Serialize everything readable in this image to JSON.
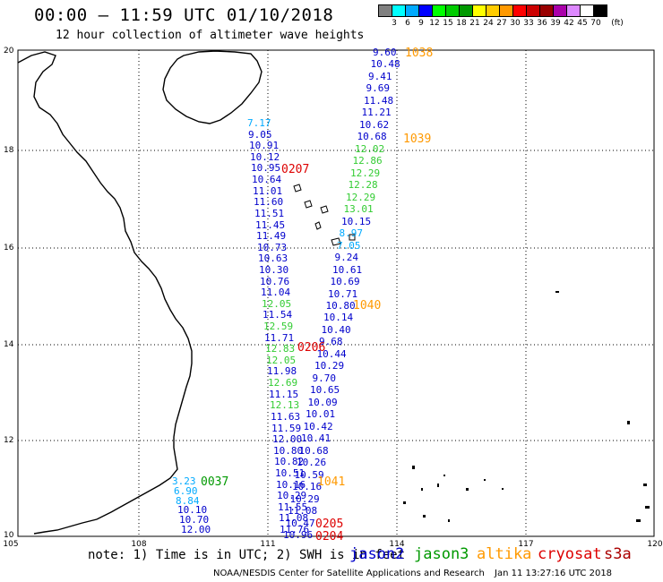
{
  "header": {
    "title": "00:00 – 11:59 UTC 01/10/2018",
    "subtitle": "12 hour collection of altimeter wave heights"
  },
  "legend": {
    "unit": "(ft)",
    "bins": [
      {
        "label": "3",
        "color": "#808080"
      },
      {
        "label": "6",
        "color": "#00ffff"
      },
      {
        "label": "9",
        "color": "#00aaff"
      },
      {
        "label": "12",
        "color": "#0000ff"
      },
      {
        "label": "15",
        "color": "#00ff00"
      },
      {
        "label": "18",
        "color": "#00cc00"
      },
      {
        "label": "21",
        "color": "#009900"
      },
      {
        "label": "24",
        "color": "#ffff00"
      },
      {
        "label": "27",
        "color": "#ffcc00"
      },
      {
        "label": "30",
        "color": "#ff9900"
      },
      {
        "label": "33",
        "color": "#ff0000"
      },
      {
        "label": "36",
        "color": "#cc0000"
      },
      {
        "label": "39",
        "color": "#990000"
      },
      {
        "label": "42",
        "color": "#aa00aa"
      },
      {
        "label": "45",
        "color": "#dd88ff"
      },
      {
        "label": "70",
        "color": "#ffffff"
      },
      {
        "label": "",
        "color": "#000000"
      }
    ]
  },
  "axes": {
    "lat_labels": [
      "20",
      "18",
      "16",
      "14",
      "12",
      "10"
    ],
    "lon_labels": [
      "105",
      "108",
      "111",
      "114",
      "117",
      "120"
    ]
  },
  "colors": {
    "jason2": "#0000cc",
    "jason3": "#009900",
    "altika": "#ff9900",
    "cryosat": "#dd0000",
    "s3a": "#aa0000",
    "cyan": "#00aaff",
    "green": "#33cc33"
  },
  "observations": {
    "track_east": [
      {
        "v": "9.60",
        "c": "blue"
      },
      {
        "v": "10.48",
        "c": "blue"
      },
      {
        "v": "9.41",
        "c": "blue"
      },
      {
        "v": "9.69",
        "c": "blue"
      },
      {
        "v": "11.48",
        "c": "blue"
      },
      {
        "v": "11.21",
        "c": "blue"
      },
      {
        "v": "10.62",
        "c": "blue"
      },
      {
        "v": "10.68",
        "c": "blue"
      },
      {
        "v": "12.02",
        "c": "green"
      },
      {
        "v": "12.86",
        "c": "green"
      },
      {
        "v": "12.29",
        "c": "green"
      },
      {
        "v": "12.28",
        "c": "green"
      },
      {
        "v": "12.29",
        "c": "green"
      },
      {
        "v": "13.01",
        "c": "green"
      },
      {
        "v": "10.15",
        "c": "blue"
      },
      {
        "v": "8.97",
        "c": "cyan"
      },
      {
        "v": "7.05",
        "c": "cyan"
      },
      {
        "v": "9.24",
        "c": "blue"
      },
      {
        "v": "10.61",
        "c": "blue"
      },
      {
        "v": "10.69",
        "c": "blue"
      },
      {
        "v": "10.71",
        "c": "blue"
      },
      {
        "v": "10.80",
        "c": "blue"
      },
      {
        "v": "10.14",
        "c": "blue"
      },
      {
        "v": "10.40",
        "c": "blue"
      },
      {
        "v": "9.68",
        "c": "blue"
      },
      {
        "v": "10.44",
        "c": "blue"
      },
      {
        "v": "10.29",
        "c": "blue"
      },
      {
        "v": "9.70",
        "c": "blue"
      },
      {
        "v": "10.65",
        "c": "blue"
      },
      {
        "v": "10.09",
        "c": "blue"
      },
      {
        "v": "10.01",
        "c": "blue"
      },
      {
        "v": "10.42",
        "c": "blue"
      },
      {
        "v": "10.41",
        "c": "blue"
      },
      {
        "v": "10.68",
        "c": "blue"
      },
      {
        "v": "10.26",
        "c": "blue"
      },
      {
        "v": "10.59",
        "c": "blue"
      },
      {
        "v": "10.16",
        "c": "blue"
      },
      {
        "v": "10.29",
        "c": "blue"
      },
      {
        "v": "11.08",
        "c": "blue"
      },
      {
        "v": "10.47",
        "c": "blue"
      },
      {
        "v": "10.96",
        "c": "blue"
      }
    ],
    "track_west": [
      {
        "v": "7.17",
        "c": "cyan"
      },
      {
        "v": "9.05",
        "c": "blue"
      },
      {
        "v": "10.91",
        "c": "blue"
      },
      {
        "v": "10.12",
        "c": "blue"
      },
      {
        "v": "10.95",
        "c": "blue"
      },
      {
        "v": "10.64",
        "c": "blue"
      },
      {
        "v": "11.01",
        "c": "blue"
      },
      {
        "v": "11.60",
        "c": "blue"
      },
      {
        "v": "11.51",
        "c": "blue"
      },
      {
        "v": "11.45",
        "c": "blue"
      },
      {
        "v": "11.49",
        "c": "blue"
      },
      {
        "v": "10.73",
        "c": "blue"
      },
      {
        "v": "10.63",
        "c": "blue"
      },
      {
        "v": "10.30",
        "c": "blue"
      },
      {
        "v": "10.76",
        "c": "blue"
      },
      {
        "v": "11.04",
        "c": "blue"
      },
      {
        "v": "12.05",
        "c": "green"
      },
      {
        "v": "11.54",
        "c": "blue"
      },
      {
        "v": "12.59",
        "c": "green"
      },
      {
        "v": "11.71",
        "c": "blue"
      },
      {
        "v": "12.83",
        "c": "green"
      },
      {
        "v": "12.05",
        "c": "green"
      },
      {
        "v": "11.98",
        "c": "blue"
      },
      {
        "v": "12.69",
        "c": "green"
      },
      {
        "v": "11.15",
        "c": "blue"
      },
      {
        "v": "12.13",
        "c": "green"
      },
      {
        "v": "11.63",
        "c": "blue"
      },
      {
        "v": "11.59",
        "c": "blue"
      },
      {
        "v": "12.00",
        "c": "blue"
      },
      {
        "v": "10.80",
        "c": "blue"
      },
      {
        "v": "10.82",
        "c": "blue"
      },
      {
        "v": "10.51",
        "c": "blue"
      },
      {
        "v": "10.16",
        "c": "blue"
      },
      {
        "v": "10.29",
        "c": "blue"
      },
      {
        "v": "11.55",
        "c": "blue"
      },
      {
        "v": "11.08",
        "c": "blue"
      },
      {
        "v": "11.76",
        "c": "blue"
      }
    ],
    "track_coast": [
      {
        "v": "3.23",
        "c": "cyan"
      },
      {
        "v": "6.90",
        "c": "cyan"
      },
      {
        "v": "8.84",
        "c": "cyan"
      },
      {
        "v": "10.10",
        "c": "blue"
      },
      {
        "v": "10.70",
        "c": "blue"
      },
      {
        "v": "12.00",
        "c": "blue"
      }
    ],
    "time_labels": [
      {
        "t": "1038",
        "c": "altika"
      },
      {
        "t": "1039",
        "c": "altika"
      },
      {
        "t": "0207",
        "c": "cryosat"
      },
      {
        "t": "1040",
        "c": "altika"
      },
      {
        "t": "0206",
        "c": "cryosat"
      },
      {
        "t": "1041",
        "c": "altika"
      },
      {
        "t": "0037",
        "c": "jason3"
      },
      {
        "t": "0205",
        "c": "cryosat"
      },
      {
        "t": "0204",
        "c": "cryosat"
      }
    ]
  },
  "footer": {
    "note": "note: 1) Time is in UTC; 2) SWH is in feet",
    "satellites": [
      {
        "name": "jason2",
        "color": "#0000cc"
      },
      {
        "name": "jason3",
        "color": "#009900"
      },
      {
        "name": "altika",
        "color": "#ff9900"
      },
      {
        "name": "cryosat",
        "color": "#dd0000"
      },
      {
        "name": "s3a",
        "color": "#aa0000"
      }
    ],
    "credit": "NOAA/NESDIS Center for Satellite Applications and Research",
    "timestamp": "Jan 11 13:27:16 UTC 2018"
  }
}
